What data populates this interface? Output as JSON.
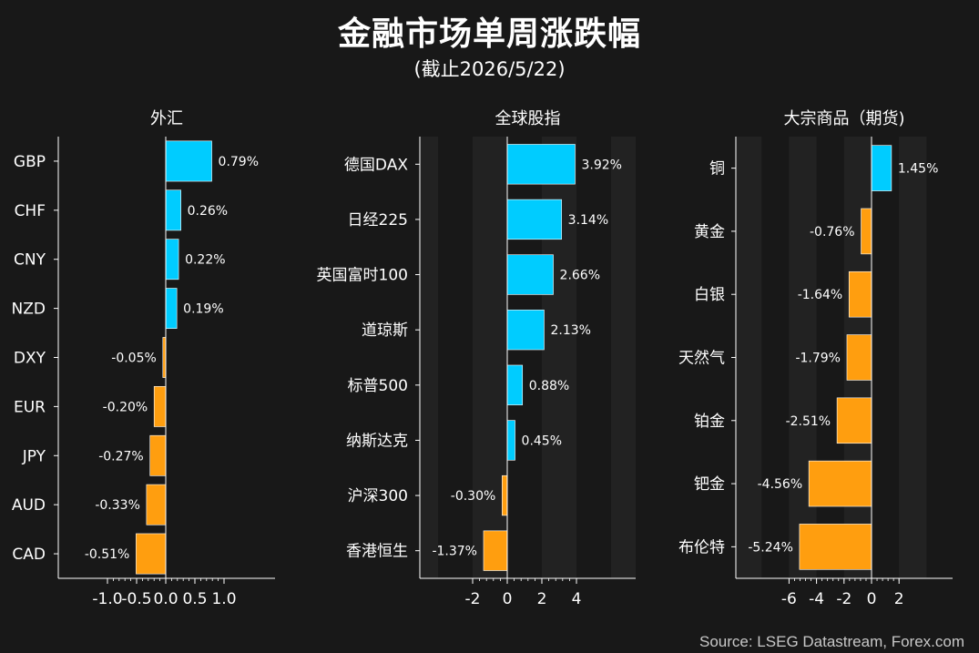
{
  "title": "金融市场单周涨跌幅",
  "subtitle": "(截止2026/5/22)",
  "source": "Source: LSEG Datastream, Forex.com",
  "colors": {
    "positive": "#00ccff",
    "negative": "#ff9e0f",
    "background": "#181818",
    "band": "#222222",
    "axis": "#ffffff"
  },
  "chart_data": [
    {
      "type": "bar",
      "orientation": "horizontal",
      "title": "外汇",
      "categories": [
        "GBP",
        "CHF",
        "CNY",
        "NZD",
        "DXY",
        "EUR",
        "JPY",
        "AUD",
        "CAD"
      ],
      "values": [
        0.79,
        0.26,
        0.22,
        0.19,
        -0.05,
        -0.2,
        -0.27,
        -0.33,
        -0.51
      ],
      "labels": [
        "0.79%",
        "0.26%",
        "0.22%",
        "0.19%",
        "-0.05%",
        "-0.20%",
        "-0.27%",
        "-0.33%",
        "-0.51%"
      ],
      "xlim": [
        -1.5,
        1.5
      ],
      "xticks": [
        -1.0,
        -0.5,
        0.0,
        0.5,
        1.0
      ],
      "xtick_labels": [
        "-1.0",
        "-0.5",
        "0.0",
        "0.5",
        "1.0"
      ],
      "minor_ticks": true,
      "bands": false
    },
    {
      "type": "bar",
      "orientation": "horizontal",
      "title": "全球股指",
      "categories": [
        "德国DAX",
        "日经225",
        "英国富时100",
        "道琼斯",
        "标普500",
        "纳斯达克",
        "沪深300",
        "香港恒生"
      ],
      "values": [
        3.92,
        3.14,
        2.66,
        2.13,
        0.88,
        0.45,
        -0.3,
        -1.37
      ],
      "labels": [
        "3.92%",
        "3.14%",
        "2.66%",
        "2.13%",
        "0.88%",
        "0.45%",
        "-0.30%",
        "-1.37%"
      ],
      "xlim": [
        -5,
        7.5
      ],
      "xticks": [
        -2,
        0,
        2,
        4
      ],
      "xtick_labels": [
        "-2",
        "0",
        "2",
        "4"
      ],
      "minor_ticks": true,
      "bands": true
    },
    {
      "type": "bar",
      "orientation": "horizontal",
      "title": "大宗商品（期货)",
      "categories": [
        "铜",
        "黄金",
        "白银",
        "天然气",
        "铂金",
        "钯金",
        "布伦特"
      ],
      "values": [
        1.45,
        -0.76,
        -1.64,
        -1.79,
        -2.51,
        -4.56,
        -5.24
      ],
      "labels": [
        "1.45%",
        "-0.76%",
        "-1.64%",
        "-1.79%",
        "-2.51%",
        "-4.56%",
        "-5.24%"
      ],
      "xlim": [
        -10,
        6
      ],
      "xticks": [
        -6,
        -4,
        -2,
        0,
        2
      ],
      "xtick_labels": [
        "-6",
        "-4",
        "-2",
        "0",
        "2"
      ],
      "minor_ticks": true,
      "bands": true
    }
  ]
}
